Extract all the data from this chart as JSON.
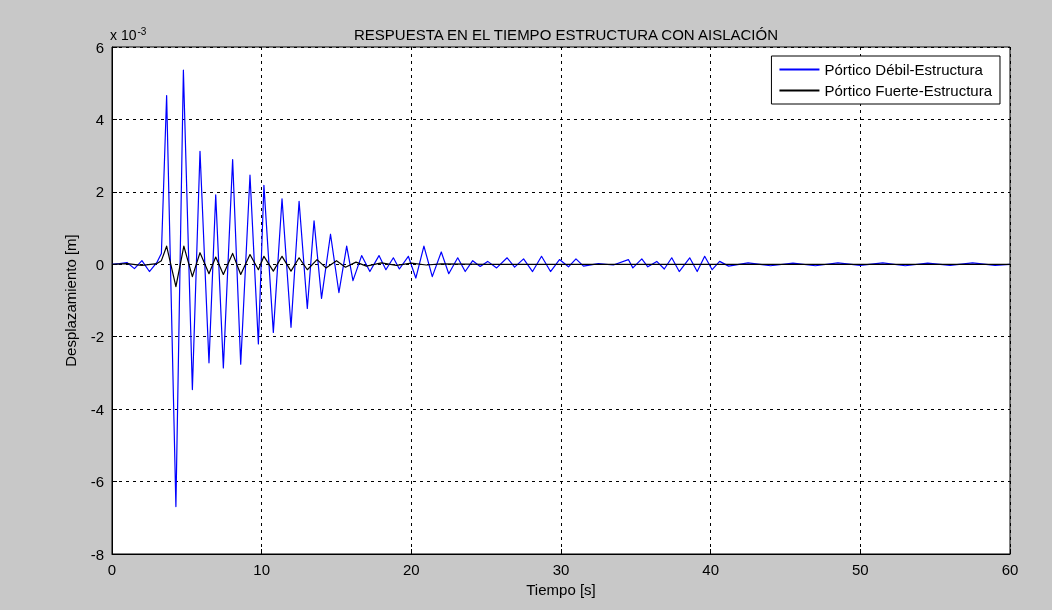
{
  "chart_data": {
    "type": "line",
    "title": "RESPUESTA EN EL TIEMPO ESTRUCTURA CON AISLACIÓN",
    "xlabel": "Tiempo [s]",
    "ylabel": "Desplazamiento [m]",
    "annotations": [
      "x 10$^{-3}$"
    ],
    "series": [
      {
        "name": "Pórtico Débil-Estructura",
        "color": "#0000ff",
        "x": [
          0,
          0.5,
          1,
          1.5,
          2,
          2.5,
          3,
          3.3,
          3.65,
          4.27,
          4.77,
          5.37,
          5.88,
          6.48,
          6.93,
          7.44,
          8.06,
          8.6,
          9.22,
          9.78,
          10.15,
          10.78,
          11.36,
          11.96,
          12.5,
          13.05,
          13.5,
          14.0,
          14.6,
          15.16,
          15.68,
          16.1,
          16.68,
          17.23,
          17.84,
          18.3,
          18.8,
          19.2,
          19.8,
          20.3,
          20.84,
          21.4,
          22.0,
          22.5,
          23.1,
          23.6,
          24.1,
          24.6,
          25.1,
          25.7,
          26.4,
          26.9,
          27.5,
          28.1,
          28.7,
          29.3,
          29.9,
          30.5,
          31.0,
          31.5,
          32.5,
          33.5,
          34.5,
          34.8,
          35.4,
          35.8,
          36.4,
          36.9,
          37.4,
          37.9,
          38.6,
          39.1,
          39.6,
          40.1,
          40.6,
          41.2,
          42.5,
          44,
          45.5,
          47,
          48.5,
          50,
          51.5,
          53,
          54.5,
          56,
          57.5,
          59,
          60
        ],
        "values": [
          0,
          0.02,
          0.05,
          -0.12,
          0.1,
          -0.2,
          0.05,
          0.3,
          4.66,
          -6.69,
          5.36,
          -3.46,
          3.12,
          -2.72,
          1.92,
          -2.86,
          2.89,
          -2.76,
          2.46,
          -2.2,
          2.18,
          -1.88,
          1.81,
          -1.74,
          1.74,
          -1.22,
          1.2,
          -0.94,
          0.83,
          -0.78,
          0.5,
          -0.45,
          0.24,
          -0.2,
          0.24,
          -0.15,
          0.18,
          -0.13,
          0.22,
          -0.38,
          0.5,
          -0.34,
          0.34,
          -0.26,
          0.18,
          -0.2,
          0.1,
          -0.06,
          0.08,
          -0.1,
          0.18,
          -0.08,
          0.15,
          -0.2,
          0.22,
          -0.2,
          0.13,
          -0.07,
          0.15,
          -0.05,
          0.02,
          -0.02,
          0.13,
          -0.1,
          0.15,
          -0.07,
          0.08,
          -0.13,
          0.18,
          -0.2,
          0.18,
          -0.2,
          0.22,
          -0.15,
          0.08,
          -0.05,
          0.04,
          -0.04,
          0.03,
          -0.04,
          0.04,
          -0.03,
          0.04,
          -0.04,
          0.03,
          -0.03,
          0.04,
          -0.03,
          0
        ]
      },
      {
        "name": "Pórtico Fuerte-Estructura",
        "color": "#000000",
        "x": [
          0,
          1,
          2,
          3,
          3.3,
          3.65,
          4.27,
          4.8,
          5.37,
          5.88,
          6.48,
          6.93,
          7.44,
          8.06,
          8.6,
          9.22,
          9.78,
          10.15,
          10.78,
          11.36,
          11.96,
          12.5,
          13.05,
          13.7,
          14.3,
          15,
          15.6,
          16.3,
          17,
          18,
          19,
          20,
          21,
          22,
          25,
          30,
          40,
          50,
          60
        ],
        "values": [
          0,
          0.02,
          -0.03,
          0.02,
          0.1,
          0.5,
          -0.62,
          0.5,
          -0.34,
          0.32,
          -0.26,
          0.2,
          -0.28,
          0.3,
          -0.28,
          0.27,
          -0.15,
          0.22,
          -0.19,
          0.22,
          -0.19,
          0.18,
          -0.15,
          0.13,
          -0.1,
          0.1,
          -0.08,
          0.06,
          -0.05,
          0.04,
          -0.03,
          0.03,
          -0.02,
          0.01,
          0,
          0,
          0,
          0,
          0
        ]
      }
    ],
    "xlim": [
      0,
      60
    ],
    "xticks": [
      0,
      10,
      20,
      30,
      40,
      50,
      60
    ],
    "ylim": [
      -8,
      6
    ],
    "yticks": [
      -8,
      -6,
      -4,
      -2,
      0,
      2,
      4,
      6
    ],
    "grid": true,
    "legend": "top right",
    "marker": "none",
    "line_style": "solid"
  }
}
